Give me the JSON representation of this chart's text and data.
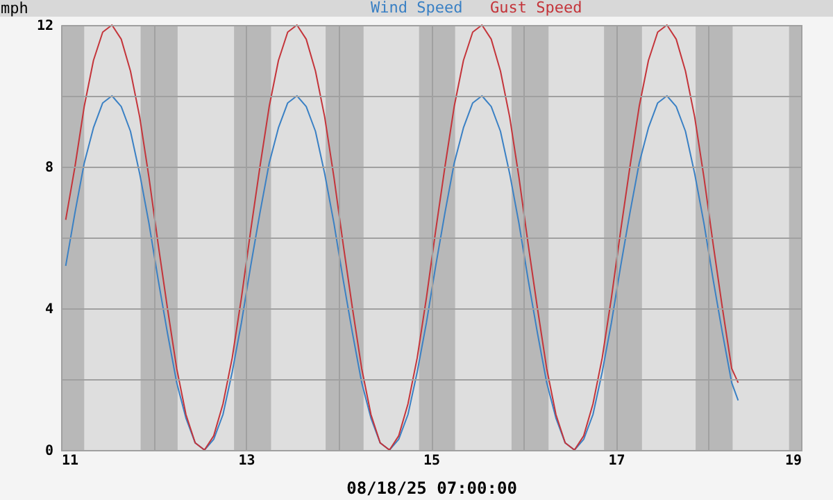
{
  "chart_data": {
    "type": "line",
    "ylabel": "mph",
    "xlabel": "08/18/25 07:00:00",
    "x": [
      11.05,
      11.15,
      11.25,
      11.35,
      11.45,
      11.55,
      11.65,
      11.75,
      11.85,
      11.95,
      12.05,
      12.15,
      12.25,
      12.35,
      12.45,
      12.55,
      12.65,
      12.75,
      12.85,
      12.95,
      13.05,
      13.15,
      13.25,
      13.35,
      13.45,
      13.55,
      13.65,
      13.75,
      13.85,
      13.95,
      14.05,
      14.15,
      14.25,
      14.35,
      14.45,
      14.55,
      14.65,
      14.75,
      14.85,
      14.95,
      15.05,
      15.15,
      15.25,
      15.35,
      15.45,
      15.55,
      15.65,
      15.75,
      15.85,
      15.95,
      16.05,
      16.15,
      16.25,
      16.35,
      16.45,
      16.55,
      16.65,
      16.75,
      16.85,
      16.95,
      17.05,
      17.15,
      17.25,
      17.35,
      17.45,
      17.55,
      17.65,
      17.75,
      17.85,
      17.95,
      18.05,
      18.15,
      18.25,
      18.32
    ],
    "series": [
      {
        "name": "Wind Speed",
        "color": "#3a80c4",
        "values": [
          5.2,
          6.7,
          8.1,
          9.1,
          9.8,
          10,
          9.7,
          9,
          7.8,
          6.4,
          4.8,
          3.3,
          1.9,
          0.9,
          0.2,
          0,
          0.3,
          1,
          2.2,
          3.6,
          5.2,
          6.7,
          8.1,
          9.1,
          9.8,
          10,
          9.7,
          9,
          7.8,
          6.4,
          4.8,
          3.3,
          1.9,
          0.9,
          0.2,
          0,
          0.3,
          1,
          2.2,
          3.6,
          5.2,
          6.7,
          8.1,
          9.1,
          9.8,
          10,
          9.7,
          9,
          7.8,
          6.4,
          4.8,
          3.3,
          1.9,
          0.9,
          0.2,
          0,
          0.3,
          1,
          2.2,
          3.6,
          5.2,
          6.7,
          8.1,
          9.1,
          9.8,
          10,
          9.7,
          9,
          7.8,
          6.4,
          4.8,
          3.3,
          1.9,
          1.4
        ]
      },
      {
        "name": "Gust Speed",
        "color": "#c4343a",
        "values": [
          6.5,
          8,
          9.7,
          11,
          11.8,
          12,
          11.6,
          10.7,
          9.4,
          7.7,
          5.8,
          4,
          2.3,
          1,
          0.2,
          0,
          0.4,
          1.3,
          2.6,
          4.3,
          6.2,
          8,
          9.7,
          11,
          11.8,
          12,
          11.6,
          10.7,
          9.4,
          7.7,
          5.8,
          4,
          2.3,
          1,
          0.2,
          0,
          0.4,
          1.3,
          2.6,
          4.3,
          6.2,
          8,
          9.7,
          11,
          11.8,
          12,
          11.6,
          10.7,
          9.4,
          7.7,
          5.8,
          4,
          2.3,
          1,
          0.2,
          0,
          0.4,
          1.3,
          2.6,
          4.3,
          6.2,
          8,
          9.7,
          11,
          11.8,
          12,
          11.6,
          10.7,
          9.4,
          7.7,
          5.8,
          4,
          2.3,
          1.9
        ]
      }
    ],
    "xlim": [
      11,
      19
    ],
    "xticks": [
      11,
      {
        "value": 12,
        "label": null
      },
      13,
      {
        "value": 14,
        "label": null
      },
      15,
      {
        "value": 16,
        "label": null
      },
      17,
      {
        "value": 18,
        "label": null
      },
      19
    ],
    "ylim": [
      0,
      12
    ],
    "yticks": [
      0,
      {
        "value": 2,
        "label": null
      },
      4,
      {
        "value": 6,
        "label": null
      },
      8,
      {
        "value": 10,
        "label": null
      },
      12
    ],
    "bands": [
      {
        "axis": "x",
        "from": 11,
        "to": 11.25,
        "color": "#b8b8b8"
      },
      {
        "axis": "x",
        "from": 11.86,
        "to": 12.26,
        "color": "#b8b8b8"
      },
      {
        "axis": "x",
        "from": 12.87,
        "to": 13.27,
        "color": "#b8b8b8"
      },
      {
        "axis": "x",
        "from": 13.86,
        "to": 14.27,
        "color": "#b8b8b8"
      },
      {
        "axis": "x",
        "from": 14.87,
        "to": 15.26,
        "color": "#b8b8b8"
      },
      {
        "axis": "x",
        "from": 15.87,
        "to": 16.27,
        "color": "#b8b8b8"
      },
      {
        "axis": "x",
        "from": 16.87,
        "to": 17.28,
        "color": "#b8b8b8"
      },
      {
        "axis": "x",
        "from": 17.86,
        "to": 18.26,
        "color": "#b8b8b8"
      },
      {
        "axis": "x",
        "from": 18.87,
        "to": 19,
        "color": "#b8b8b8"
      }
    ],
    "grid": true,
    "line_style": "solid"
  }
}
